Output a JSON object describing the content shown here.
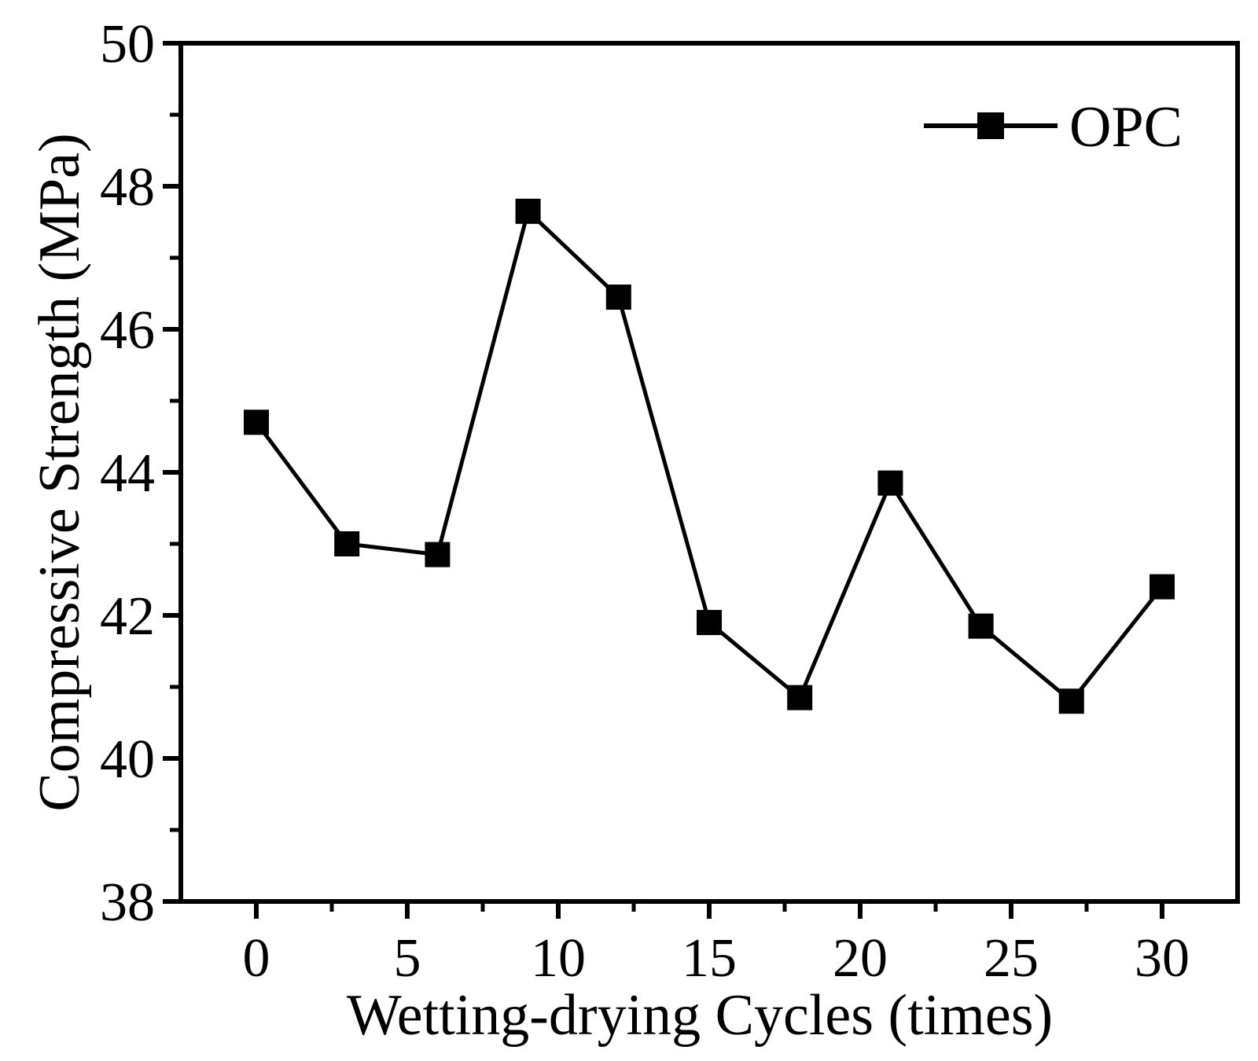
{
  "figure": {
    "background": "#ffffff",
    "ink": "#000000"
  },
  "legend": {
    "label": "OPC",
    "position": "top-right",
    "marker": "filled-square"
  },
  "chart_data": {
    "type": "line",
    "title": "",
    "xlabel": "Wetting-drying Cycles (times)",
    "ylabel": "Compressive Strength (MPa)",
    "x": [
      0,
      3,
      6,
      9,
      12,
      15,
      18,
      21,
      24,
      27,
      30
    ],
    "series": [
      {
        "name": "OPC",
        "color": "#000000",
        "marker": "filled-square",
        "values": [
          44.7,
          43.0,
          42.85,
          47.65,
          46.45,
          41.9,
          40.85,
          43.85,
          41.85,
          40.8,
          42.4
        ]
      }
    ],
    "xlim": [
      -2.5,
      32.5
    ],
    "ylim": [
      38,
      50
    ],
    "x_ticks_major": [
      0,
      5,
      10,
      15,
      20,
      25,
      30
    ],
    "x_ticks_minor": [
      2.5,
      7.5,
      12.5,
      17.5,
      22.5,
      27.5
    ],
    "y_ticks_major": [
      38,
      40,
      42,
      44,
      46,
      48,
      50
    ],
    "y_ticks_minor": [
      39,
      41,
      43,
      45,
      47,
      49
    ],
    "grid": false,
    "frame": "full-box",
    "tick_direction": "out",
    "legend_position": "top-right"
  }
}
